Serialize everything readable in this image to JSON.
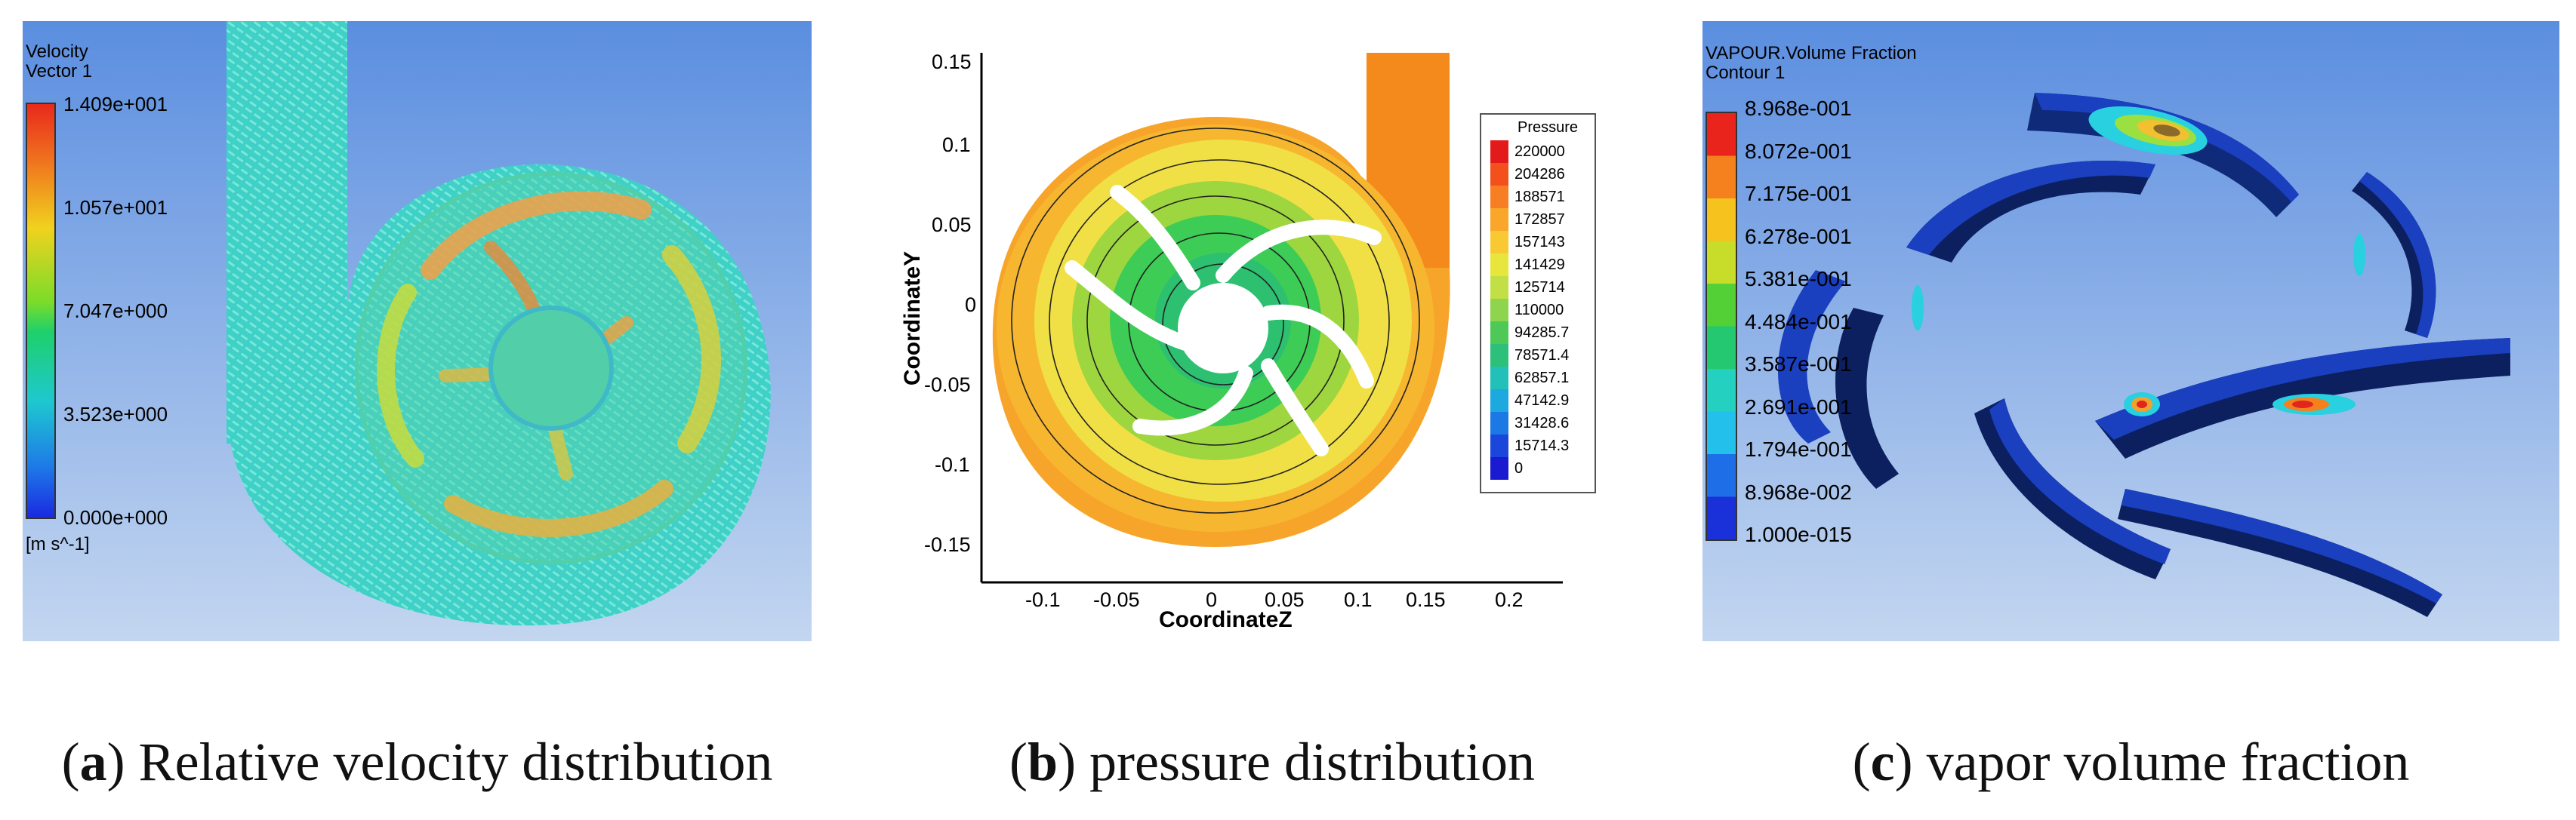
{
  "panels": {
    "a": {
      "title_line1": "Velocity",
      "title_line2": "Vector 1",
      "legend_values": [
        "1.409e+001",
        "1.057e+001",
        "7.047e+000",
        "3.523e+000",
        "0.000e+000"
      ],
      "unit": "[m s^-1]",
      "caption_letter": "a",
      "caption_text": " Relative velocity distribution"
    },
    "b": {
      "legend_title": "Pressure",
      "legend_values": [
        "220000",
        "204286",
        "188571",
        "172857",
        "157143",
        "141429",
        "125714",
        "110000",
        "94285.7",
        "78571.4",
        "62857.1",
        "47142.9",
        "31428.6",
        "15714.3",
        "0"
      ],
      "xlabel": "CoordinateZ",
      "ylabel": "CoordinateY",
      "xticks": [
        "-0.1",
        "-0.05",
        "0",
        "0.05",
        "0.1",
        "0.15",
        "0.2"
      ],
      "yticks": [
        "0.15",
        "0.1",
        "0.05",
        "0",
        "-0.05",
        "-0.1",
        "-0.15"
      ],
      "caption_letter": "b",
      "caption_text": " pressure distribution"
    },
    "c": {
      "title_line1": "VAPOUR.Volume Fraction",
      "title_line2": "Contour 1",
      "legend_values": [
        "8.968e-001",
        "8.072e-001",
        "7.175e-001",
        "6.278e-001",
        "5.381e-001",
        "4.484e-001",
        "3.587e-001",
        "2.691e-001",
        "1.794e-001",
        "8.968e-002",
        "1.000e-015"
      ],
      "caption_letter": "c",
      "caption_text": " vapor volume fraction"
    }
  },
  "colors": {
    "bg_gradient_top": "#5b8ee0",
    "bg_gradient_bottom": "#c3d6f0",
    "blade_dark": "#0c1f5e",
    "blade_blue": "#1a3fbf"
  }
}
